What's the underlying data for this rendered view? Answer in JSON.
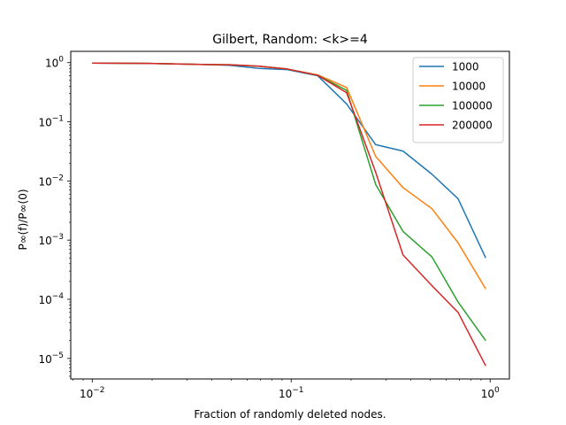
{
  "chart_data": {
    "type": "line",
    "title": "Gilbert, Random: <k>=4",
    "xlabel": "Fraction of randomly deleted nodes.",
    "ylabel": "P∞(f)/P∞(0)",
    "xscale": "log",
    "yscale": "log",
    "xlim": [
      0.0078,
      1.25
    ],
    "ylim": [
      4.5e-06,
      1.55
    ],
    "grid": false,
    "legend_position": "top-right",
    "x_ticks": [
      {
        "value": 0.01,
        "base": "10",
        "exp": "−2"
      },
      {
        "value": 0.1,
        "base": "10",
        "exp": "−1"
      },
      {
        "value": 1,
        "base": "10",
        "exp": "0"
      }
    ],
    "y_ticks": [
      {
        "value": 1,
        "base": "10",
        "exp": "0"
      },
      {
        "value": 0.1,
        "base": "10",
        "exp": "−1"
      },
      {
        "value": 0.01,
        "base": "10",
        "exp": "−2"
      },
      {
        "value": 0.001,
        "base": "10",
        "exp": "−3"
      },
      {
        "value": 0.0001,
        "base": "10",
        "exp": "−4"
      },
      {
        "value": 1e-05,
        "base": "10",
        "exp": "−5"
      }
    ],
    "x": [
      0.01,
      0.0193,
      0.0373,
      0.0489,
      0.0684,
      0.0955,
      0.136,
      0.19,
      0.266,
      0.365,
      0.51,
      0.69,
      0.95
    ],
    "series": [
      {
        "name": "1000",
        "color": "#1f77b4",
        "values": [
          0.98,
          0.97,
          0.93,
          0.9,
          0.8,
          0.76,
          0.6,
          0.2,
          0.041,
          0.032,
          0.013,
          0.005,
          0.0005
        ]
      },
      {
        "name": "10000",
        "color": "#ff7f0e",
        "values": [
          0.98,
          0.97,
          0.93,
          0.92,
          0.87,
          0.78,
          0.62,
          0.38,
          0.026,
          0.0077,
          0.0034,
          0.0009,
          0.00015
        ]
      },
      {
        "name": "100000",
        "color": "#2ca02c",
        "values": [
          0.98,
          0.97,
          0.93,
          0.92,
          0.87,
          0.78,
          0.61,
          0.34,
          0.0087,
          0.0014,
          0.00052,
          9e-05,
          2e-05
        ]
      },
      {
        "name": "200000",
        "color": "#d62728",
        "values": [
          0.98,
          0.97,
          0.93,
          0.92,
          0.87,
          0.78,
          0.61,
          0.31,
          0.014,
          0.00056,
          0.00017,
          6e-05,
          7.5e-06
        ]
      }
    ]
  }
}
